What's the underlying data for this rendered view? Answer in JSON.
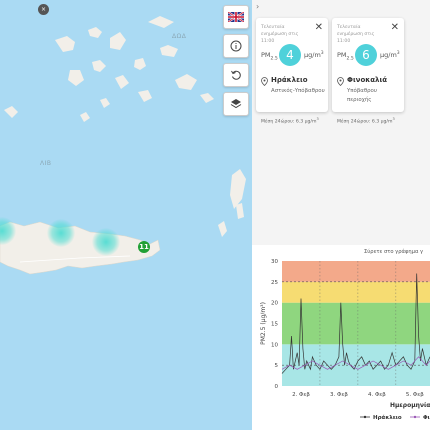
{
  "map": {
    "controls": {
      "language_flag": "uk-flag-icon",
      "info": "info-icon",
      "reset": "rotate-ccw-icon",
      "layers": "layers-icon"
    },
    "marker_count": "11",
    "marker_color": "#21a035",
    "glow_color": "#50dcd2"
  },
  "panel": {
    "collapse_glyph": "›",
    "cards": [
      {
        "updated_label": "Τελευταία ενημέρωση στις 11:00",
        "pm_label": "PM",
        "pm_sub": "2.5",
        "value": "4",
        "unit": "μg/m",
        "unit_sup": "3",
        "station_name": "Ηράκλειο",
        "station_type": "Αστικός-Υπόβαθρου",
        "avg_label": "Μέση 24ώρου: 6.3 μg/m",
        "avg_sup": "3"
      },
      {
        "updated_label": "Τελευταία ενημέρωση στις 11:00",
        "pm_label": "PM",
        "pm_sub": "2.5",
        "value": "6",
        "unit": "μg/m",
        "unit_sup": "3",
        "station_name": "Φινοκαλιά",
        "station_type": "Υπόβαθρου περιοχής",
        "avg_label": "Μέση 24ώρου: 6.3 μg/m",
        "avg_sup": "3"
      }
    ]
  },
  "chart_hint": "Σύρετε στο γράφημα γ",
  "chart_data": {
    "type": "line",
    "ylabel": "PM2.5 (μg/m³)",
    "xlabel": "Ημερομηνία",
    "ylim": [
      0,
      30
    ],
    "yticks": [
      "0",
      "5",
      "10",
      "15",
      "20",
      "25",
      "30"
    ],
    "xticks": [
      {
        "label": "2. Φεβ",
        "day": 2
      },
      {
        "label": "3. Φεβ",
        "day": 3
      },
      {
        "label": "4. Φεβ",
        "day": 4
      },
      {
        "label": "5. Φεβ",
        "day": 5
      }
    ],
    "bands": [
      {
        "from": 0,
        "to": 10,
        "color": "#a8e6e6"
      },
      {
        "from": 10,
        "to": 20,
        "color": "#8fd67f"
      },
      {
        "from": 20,
        "to": 25,
        "color": "#f6dc72"
      },
      {
        "from": 25,
        "to": 30,
        "color": "#f3a98a"
      }
    ],
    "series": [
      {
        "name": "Ηράκλειο",
        "color": "#333333",
        "x": [
          1.5,
          1.6,
          1.7,
          1.75,
          1.8,
          1.85,
          1.9,
          1.95,
          2.0,
          2.05,
          2.1,
          2.15,
          2.2,
          2.25,
          2.3,
          2.4,
          2.5,
          2.6,
          2.7,
          2.8,
          2.9,
          3.0,
          3.05,
          3.1,
          3.15,
          3.2,
          3.25,
          3.3,
          3.4,
          3.5,
          3.6,
          3.7,
          3.8,
          3.9,
          4.0,
          4.1,
          4.2,
          4.3,
          4.4,
          4.5,
          4.6,
          4.7,
          4.8,
          4.9,
          5.0,
          5.05,
          5.1,
          5.15,
          5.2,
          5.3,
          5.4
        ],
        "y": [
          3,
          4,
          5,
          12,
          4,
          6,
          8,
          5,
          21,
          9,
          4,
          6,
          5,
          4,
          7,
          5,
          4,
          6,
          5,
          4,
          5,
          7,
          20,
          10,
          5,
          8,
          6,
          5,
          4,
          6,
          7,
          5,
          6,
          4,
          5,
          6,
          4,
          5,
          8,
          5,
          6,
          7,
          5,
          4,
          6,
          27,
          12,
          6,
          9,
          5,
          7
        ]
      },
      {
        "name": "Φινοκαλιά",
        "color": "#9b59b6",
        "x": [
          1.5,
          1.7,
          1.9,
          2.1,
          2.3,
          2.5,
          2.7,
          2.9,
          3.1,
          3.3,
          3.5,
          3.7,
          3.9,
          4.1,
          4.3,
          4.5,
          4.7,
          4.9,
          5.1,
          5.3,
          5.4
        ],
        "y": [
          4,
          5,
          4,
          5,
          6,
          5,
          4,
          5,
          6,
          5,
          4,
          5,
          6,
          5,
          4,
          5,
          6,
          5,
          7,
          5,
          6
        ]
      }
    ],
    "threshold_lines": [
      5,
      25
    ]
  },
  "legend": {
    "items": [
      {
        "label": "Ηράκλειο",
        "color": "#333333"
      },
      {
        "label": "Φι",
        "color": "#9b59b6"
      }
    ]
  }
}
